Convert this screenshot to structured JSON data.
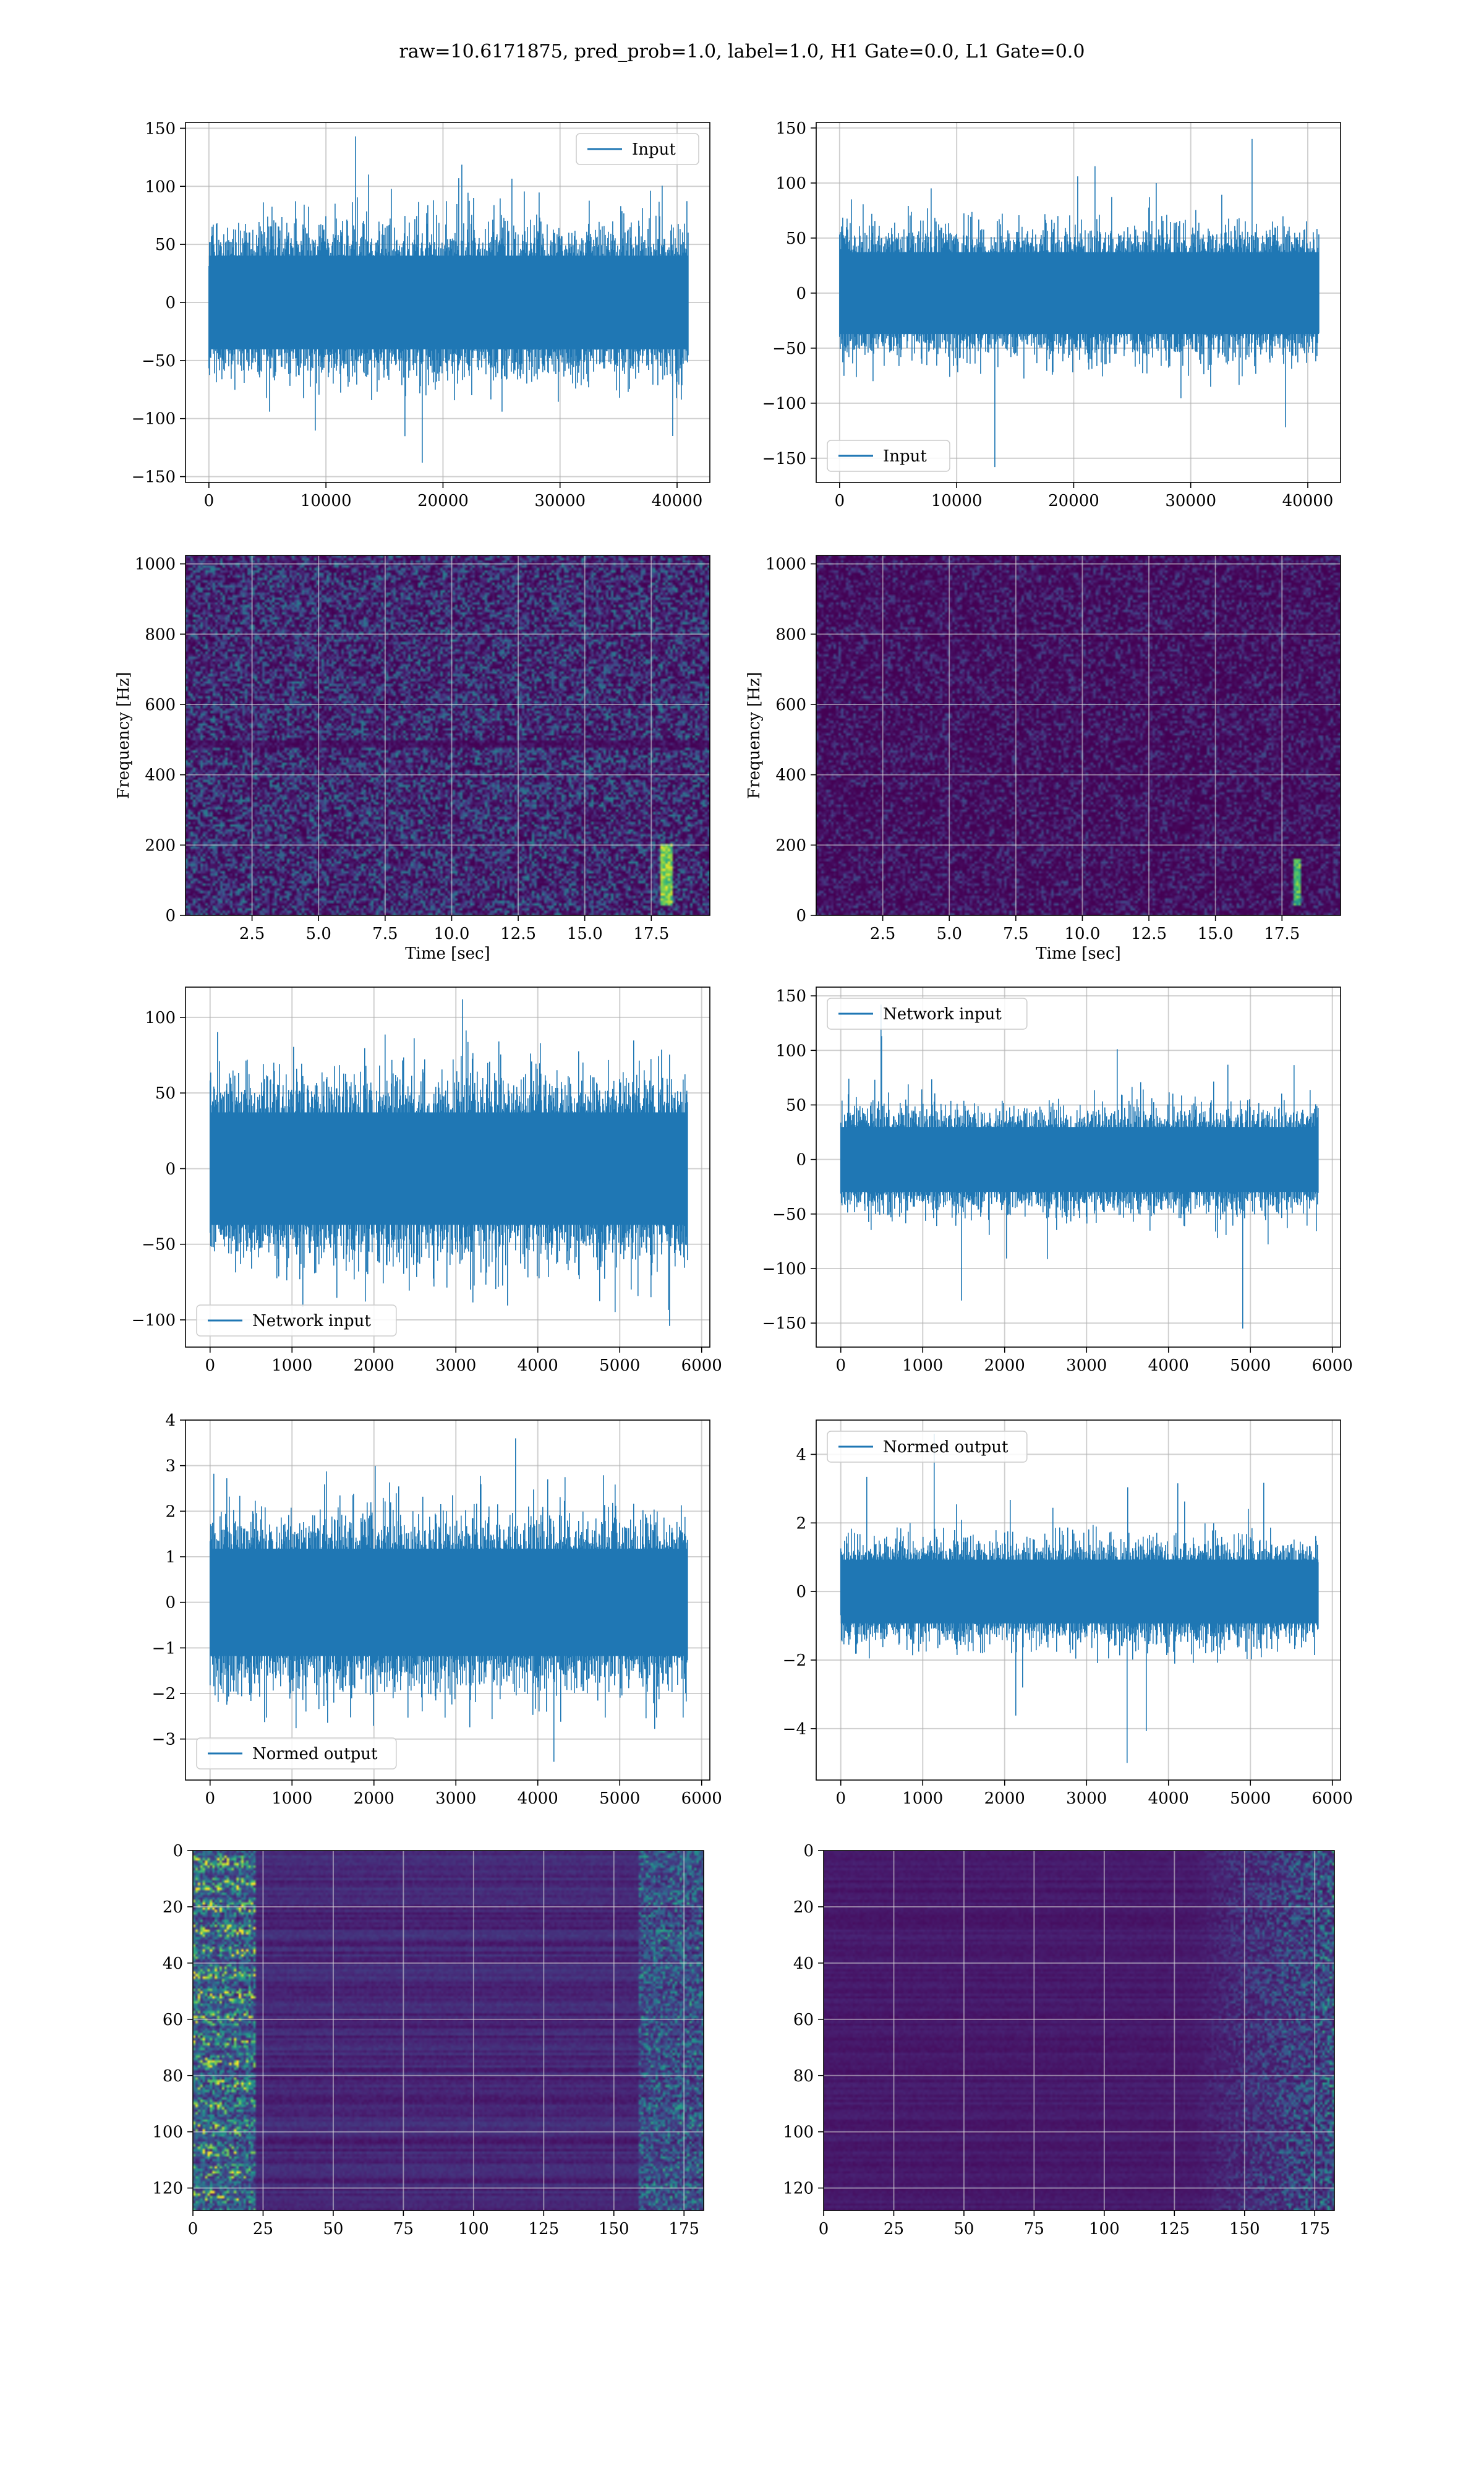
{
  "title": "raw=10.6171875, pred_prob=1.0, label=1.0, H1 Gate=0.0, L1 Gate=0.0",
  "colors": {
    "series": "#1f77b4",
    "grid": "#b0b0b0",
    "viridis_dark": "#440154",
    "viridis_blue": "#3b528b",
    "viridis_teal": "#21918c",
    "viridis_green": "#5ec962",
    "viridis_yellow": "#fde725"
  },
  "chart_data": [
    {
      "id": "input-h1",
      "type": "line",
      "legend": {
        "label": "Input",
        "placement": "upper right"
      },
      "xlim": [
        -2000,
        42800
      ],
      "ylim": [
        -155,
        155
      ],
      "xticks": [
        0,
        10000,
        20000,
        30000,
        40000
      ],
      "yticks": [
        -150,
        -100,
        -50,
        0,
        50,
        100,
        150
      ],
      "n_samples": 40960,
      "envelope": {
        "q": 65,
        "max": 143,
        "min": -138
      },
      "grid": true
    },
    {
      "id": "input-l1",
      "type": "line",
      "legend": {
        "label": "Input",
        "placement": "lower left"
      },
      "xlim": [
        -2000,
        42800
      ],
      "ylim": [
        -172,
        155
      ],
      "xticks": [
        0,
        10000,
        20000,
        30000,
        40000
      ],
      "yticks": [
        -150,
        -100,
        -50,
        0,
        50,
        100,
        150
      ],
      "n_samples": 40960,
      "envelope": {
        "q": 60,
        "max": 140,
        "min": -158
      },
      "grid": true
    },
    {
      "id": "spectrogram-h1",
      "type": "heatmap",
      "xlabel": "Time [sec]",
      "ylabel": "Frequency [Hz]",
      "xlim": [
        0,
        19.7
      ],
      "ylim": [
        0,
        1024
      ],
      "xticks": [
        2.5,
        5.0,
        7.5,
        10.0,
        12.5,
        15.0,
        17.5
      ],
      "xtick_labels": [
        "2.5",
        "5.0",
        "7.5",
        "10.0",
        "12.5",
        "15.0",
        "17.5"
      ],
      "yticks": [
        0,
        200,
        400,
        600,
        800,
        1000
      ],
      "colormap": "viridis",
      "grid": true
    },
    {
      "id": "spectrogram-l1",
      "type": "heatmap",
      "xlabel": "Time [sec]",
      "ylabel": "Frequency [Hz]",
      "xlim": [
        0,
        19.7
      ],
      "ylim": [
        0,
        1024
      ],
      "xticks": [
        2.5,
        5.0,
        7.5,
        10.0,
        12.5,
        15.0,
        17.5
      ],
      "xtick_labels": [
        "2.5",
        "5.0",
        "7.5",
        "10.0",
        "12.5",
        "15.0",
        "17.5"
      ],
      "yticks": [
        0,
        200,
        400,
        600,
        800,
        1000
      ],
      "colormap": "viridis",
      "grid": true
    },
    {
      "id": "network-input-h1",
      "type": "line",
      "legend": {
        "label": "Network input",
        "placement": "lower left"
      },
      "xlim": [
        -300,
        6100
      ],
      "ylim": [
        -118,
        120
      ],
      "xticks": [
        0,
        1000,
        2000,
        3000,
        4000,
        5000,
        6000
      ],
      "yticks": [
        -100,
        -50,
        0,
        50,
        100
      ],
      "n_samples": 5830,
      "envelope": {
        "q": 60,
        "max": 112,
        "min": -104
      },
      "grid": true
    },
    {
      "id": "network-input-l1",
      "type": "line",
      "legend": {
        "label": "Network input",
        "placement": "upper left"
      },
      "xlim": [
        -300,
        6100
      ],
      "ylim": [
        -172,
        158
      ],
      "xticks": [
        0,
        1000,
        2000,
        3000,
        4000,
        5000,
        6000
      ],
      "yticks": [
        -150,
        -100,
        -50,
        0,
        50,
        100,
        150
      ],
      "n_samples": 5830,
      "envelope": {
        "q": 48,
        "max": 142,
        "min": -155
      },
      "grid": true
    },
    {
      "id": "normed-output-h1",
      "type": "line",
      "legend": {
        "label": "Normed output",
        "placement": "lower left"
      },
      "xlim": [
        -300,
        6100
      ],
      "ylim": [
        -3.9,
        4
      ],
      "xticks": [
        0,
        1000,
        2000,
        3000,
        4000,
        5000,
        6000
      ],
      "yticks": [
        -3,
        -2,
        -1,
        0,
        1,
        2,
        3,
        4
      ],
      "n_samples": 5830,
      "envelope": {
        "q": 1.9,
        "max": 3.6,
        "min": -3.5
      },
      "grid": true
    },
    {
      "id": "normed-output-l1",
      "type": "line",
      "legend": {
        "label": "Normed output",
        "placement": "upper left"
      },
      "xlim": [
        -300,
        6100
      ],
      "ylim": [
        -5.5,
        5.0
      ],
      "xticks": [
        0,
        1000,
        2000,
        3000,
        4000,
        5000,
        6000
      ],
      "yticks": [
        -4,
        -2,
        0,
        2,
        4
      ],
      "n_samples": 5830,
      "envelope": {
        "q": 1.5,
        "max": 4.6,
        "min": -5.0
      },
      "grid": true
    },
    {
      "id": "feature-map-h1",
      "type": "heatmap",
      "xlim": [
        0,
        182
      ],
      "ylim": [
        128,
        0
      ],
      "xticks": [
        0,
        25,
        50,
        75,
        100,
        125,
        150,
        175
      ],
      "yticks": [
        0,
        20,
        40,
        60,
        80,
        100,
        120
      ],
      "colormap": "viridis",
      "grid": true
    },
    {
      "id": "feature-map-l1",
      "type": "heatmap",
      "xlim": [
        0,
        182
      ],
      "ylim": [
        128,
        0
      ],
      "xticks": [
        0,
        25,
        50,
        75,
        100,
        125,
        150,
        175
      ],
      "yticks": [
        0,
        20,
        40,
        60,
        80,
        100,
        120
      ],
      "colormap": "viridis",
      "grid": true
    }
  ]
}
